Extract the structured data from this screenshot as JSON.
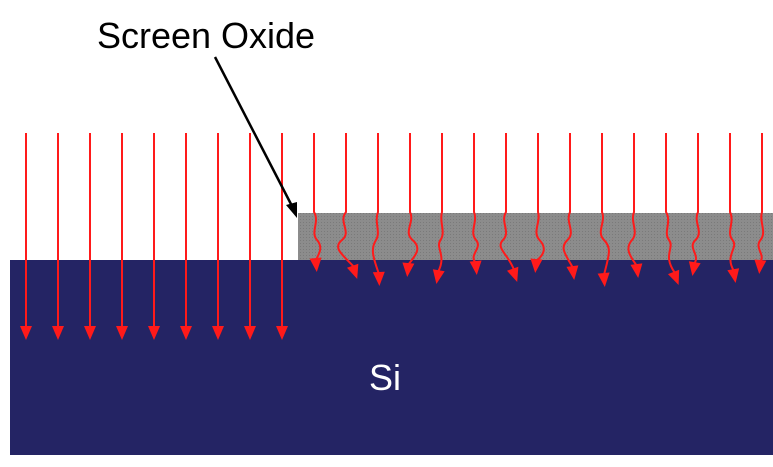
{
  "labels": {
    "oxide": "Screen Oxide",
    "substrate": "Si"
  }
}
